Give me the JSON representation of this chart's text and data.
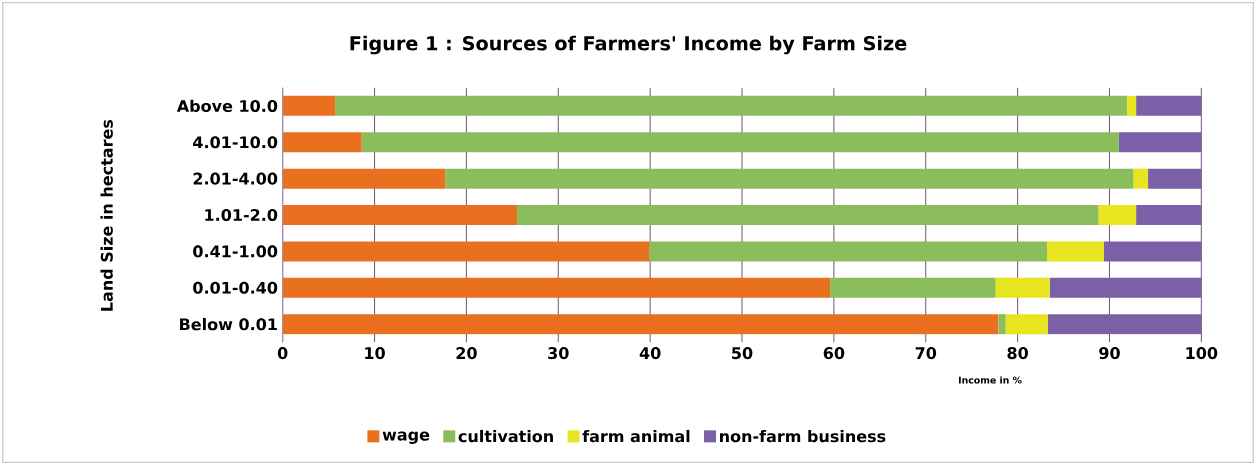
{
  "chart_data": {
    "type": "bar",
    "orientation": "horizontal",
    "stacked": true,
    "title": "Figure 1 : Sources of Farmers' Income  by Farm Size",
    "xlabel": "Income in %",
    "ylabel": "Land Size in hectares",
    "categories": [
      "Above 10.0",
      "4.01-10.0",
      "2.01-4.00",
      "1.01-2.0",
      "0.41-1.00",
      "0.01-0.40",
      "Below 0.01"
    ],
    "series": [
      {
        "name": "wage",
        "color": "#e8701f",
        "values": [
          5.7,
          8.6,
          17.7,
          25.5,
          39.9,
          59.6,
          77.9
        ]
      },
      {
        "name": "cultivation",
        "color": "#8bbd5c",
        "values": [
          86.2,
          82.4,
          74.9,
          63.3,
          43.3,
          18.0,
          0.8
        ]
      },
      {
        "name": "farm animal",
        "color": "#e8e520",
        "values": [
          1.0,
          0.0,
          1.6,
          4.1,
          6.2,
          5.9,
          4.6
        ]
      },
      {
        "name": "non-farm business",
        "color": "#7b60a8",
        "values": [
          7.1,
          9.0,
          5.8,
          7.1,
          10.6,
          16.5,
          16.7
        ]
      }
    ],
    "xlim": [
      0,
      100
    ],
    "xticks": [
      0,
      10,
      20,
      30,
      40,
      50,
      60,
      70,
      80,
      90,
      100
    ],
    "grid": "x",
    "legend": "bottom"
  }
}
